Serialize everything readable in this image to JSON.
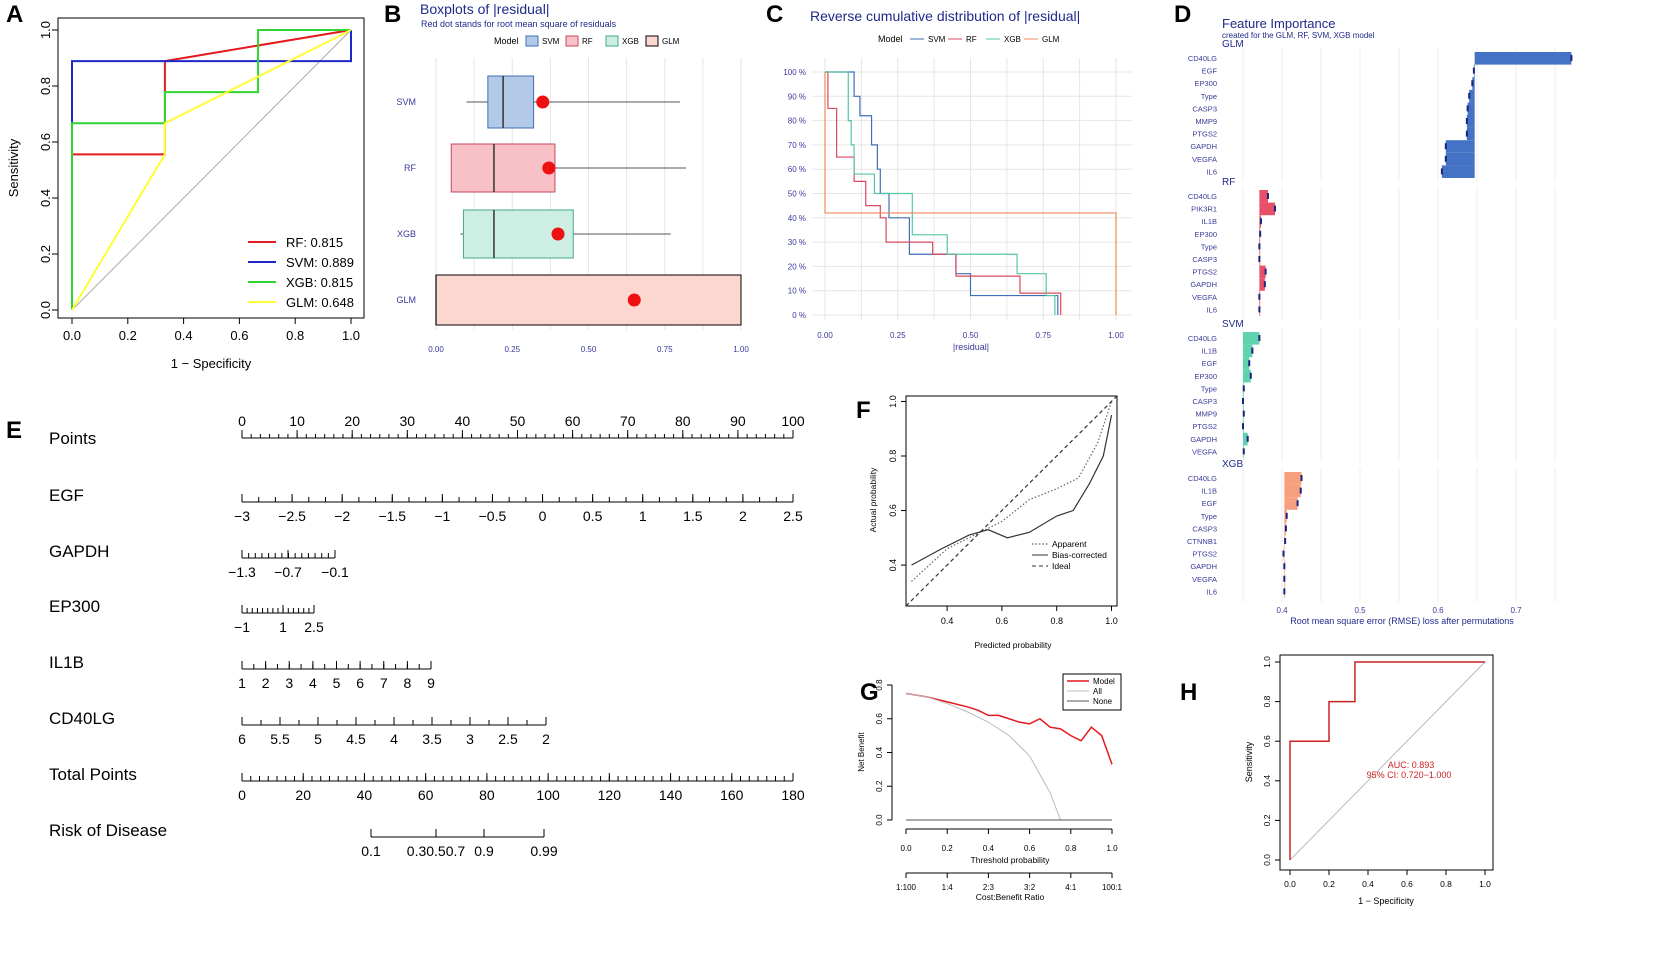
{
  "chart_data": [
    {
      "panel": "A",
      "type": "line",
      "title": "",
      "xlabel": "1 − Specificity",
      "ylabel": "Sensitivity",
      "xlim": [
        0,
        1
      ],
      "ylim": [
        0,
        1
      ],
      "ticks": [
        "0.0",
        "0.2",
        "0.4",
        "0.6",
        "0.8",
        "1.0"
      ],
      "legend_position": "bottom-right",
      "series": [
        {
          "name": "RF",
          "legend": "RF: 0.815",
          "color": "#e41a1c",
          "x": [
            0,
            0,
            0.333,
            0.333,
            0.333,
            0.333,
            1
          ],
          "y": [
            0,
            0.556,
            0.556,
            0.889,
            0.889,
            0.889,
            1
          ]
        },
        {
          "name": "SVM",
          "legend": "SVM: 0.889",
          "color": "#1f27c9",
          "x": [
            0,
            0,
            1,
            1
          ],
          "y": [
            0,
            0.889,
            0.889,
            1
          ]
        },
        {
          "name": "XGB",
          "legend": "XGB: 0.815",
          "color": "#2ed62e",
          "x": [
            0,
            0,
            0.333,
            0.333,
            0.667,
            0.667,
            1
          ],
          "y": [
            0,
            0.667,
            0.667,
            0.778,
            0.778,
            1,
            1
          ]
        },
        {
          "name": "GLM",
          "legend": "GLM: 0.648",
          "color": "#ffff33",
          "x": [
            0,
            0.333,
            0.333,
            1
          ],
          "y": [
            0,
            0.556,
            0.667,
            1
          ]
        }
      ]
    },
    {
      "panel": "B",
      "type": "box",
      "title": "Boxplots of |residual|",
      "subtitle": "Red dot stands for root mean square of residuals",
      "legend_title": "Model",
      "xlim": [
        0,
        1
      ],
      "ticks": [
        "0.00",
        "0.25",
        "0.50",
        "0.75",
        "1.00"
      ],
      "boxes": [
        {
          "name": "SVM",
          "fill": "#b3c9e8",
          "stroke": "#3f6fb5",
          "wlo": 0.1,
          "q1": 0.17,
          "med": 0.22,
          "q3": 0.32,
          "whi": 0.8,
          "rms": 0.35
        },
        {
          "name": "RF",
          "fill": "#f8c1c8",
          "stroke": "#c9485c",
          "wlo": 0.05,
          "q1": 0.05,
          "med": 0.19,
          "q3": 0.39,
          "whi": 0.82,
          "rms": 0.37
        },
        {
          "name": "XGB",
          "fill": "#cdeee3",
          "stroke": "#44a889",
          "wlo": 0.08,
          "q1": 0.09,
          "med": 0.19,
          "q3": 0.45,
          "whi": 0.77,
          "rms": 0.4
        },
        {
          "name": "GLM",
          "fill": "#fbd7cf",
          "stroke": "#000000",
          "wlo": 0.0,
          "q1": 0.0,
          "med": 0.0,
          "q3": 1.0,
          "whi": 1.0,
          "rms": 0.65
        }
      ]
    },
    {
      "panel": "C",
      "type": "line",
      "title": "Reverse cumulative distribution of |residual|",
      "legend_title": "Model",
      "xlabel": "|residual|",
      "xticks": [
        "0.00",
        "0.25",
        "0.50",
        "0.75",
        "1.00"
      ],
      "yticks": [
        "0 %",
        "10 %",
        "20 %",
        "30 %",
        "40 %",
        "50 %",
        "60 %",
        "70 %",
        "80 %",
        "90 %",
        "100 %"
      ],
      "series": [
        {
          "name": "SVM",
          "color": "#3f6fb5",
          "x": [
            0,
            0.1,
            0.12,
            0.16,
            0.18,
            0.19,
            0.22,
            0.29,
            0.45,
            0.5,
            0.8
          ],
          "y": [
            1,
            0.9,
            0.82,
            0.7,
            0.6,
            0.5,
            0.4,
            0.25,
            0.17,
            0.08,
            0
          ]
        },
        {
          "name": "RF",
          "color": "#d94a5f",
          "x": [
            0,
            0.01,
            0.04,
            0.1,
            0.14,
            0.19,
            0.21,
            0.37,
            0.45,
            0.67,
            0.81
          ],
          "y": [
            1,
            0.85,
            0.65,
            0.55,
            0.45,
            0.4,
            0.3,
            0.25,
            0.16,
            0.09,
            0
          ]
        },
        {
          "name": "XGB",
          "color": "#55c6a5",
          "x": [
            0,
            0.08,
            0.09,
            0.1,
            0.17,
            0.3,
            0.42,
            0.66,
            0.76,
            0.79
          ],
          "y": [
            1,
            0.8,
            0.7,
            0.58,
            0.5,
            0.33,
            0.25,
            0.17,
            0.08,
            0
          ]
        },
        {
          "name": "GLM",
          "color": "#f08a5a",
          "x": [
            0,
            0.0,
            1.0,
            1.0
          ],
          "y": [
            1,
            0.42,
            0.42,
            0
          ]
        }
      ]
    },
    {
      "panel": "D",
      "type": "bar",
      "title": "Feature Importance",
      "subtitle": "created for the GLM, RF, SVM, XGB model",
      "xlabel": "Root mean square error (RMSE) loss after permutations",
      "xticks": [
        "0.4",
        "0.5",
        "0.6",
        "0.7"
      ],
      "series": [
        {
          "name": "GLM",
          "color": "#4472c4",
          "base": 0.647,
          "categories": [
            "CD40LG",
            "EGF",
            "EP300",
            "Type",
            "CASP3",
            "MMP9",
            "PTGS2",
            "GAPDH",
            "VEGFA",
            "IL6"
          ],
          "values": [
            0.771,
            0.646,
            0.644,
            0.64,
            0.638,
            0.637,
            0.637,
            0.61,
            0.61,
            0.605
          ]
        },
        {
          "name": "RF",
          "color": "#e8506a",
          "base": 0.371,
          "categories": [
            "CD40LG",
            "PIK3R1",
            "IL1B",
            "EP300",
            "Type",
            "CASP3",
            "PTGS2",
            "GAPDH",
            "VEGFA",
            "IL6"
          ],
          "values": [
            0.382,
            0.391,
            0.373,
            0.372,
            0.371,
            0.371,
            0.379,
            0.378,
            0.371,
            0.371
          ]
        },
        {
          "name": "SVM",
          "color": "#5fd3ad",
          "base": 0.35,
          "categories": [
            "CD40LG",
            "IL1B",
            "EGF",
            "EP300",
            "Type",
            "CASP3",
            "MMP9",
            "PTGS2",
            "GAPDH",
            "VEGFA"
          ],
          "values": [
            0.371,
            0.362,
            0.358,
            0.36,
            0.351,
            0.35,
            0.351,
            0.35,
            0.356,
            0.351
          ]
        },
        {
          "name": "XGB",
          "color": "#f7a080",
          "base": 0.403,
          "categories": [
            "CD40LG",
            "IL1B",
            "EGF",
            "Type",
            "CASP3",
            "CTNNB1",
            "PTGS2",
            "GAPDH",
            "VEGFA",
            "IL6"
          ],
          "values": [
            0.425,
            0.424,
            0.42,
            0.406,
            0.405,
            0.404,
            0.402,
            0.403,
            0.403,
            0.403
          ]
        }
      ]
    },
    {
      "panel": "E",
      "type": "nomogram",
      "rows": [
        {
          "label": "Points",
          "ticks": [
            "0",
            "10",
            "20",
            "30",
            "40",
            "50",
            "60",
            "70",
            "80",
            "90",
            "100"
          ],
          "labels_above": true
        },
        {
          "label": "EGF",
          "ticks": [
            "−3",
            "−2.5",
            "−2",
            "−1.5",
            "−1",
            "−0.5",
            "0",
            "0.5",
            "1",
            "1.5",
            "2",
            "2.5"
          ]
        },
        {
          "label": "GAPDH",
          "ticks": [
            "−1.3",
            "−0.7",
            "−0.1"
          ]
        },
        {
          "label": "EP300",
          "ticks": [
            "−1",
            "1",
            "2.5"
          ]
        },
        {
          "label": "IL1B",
          "ticks": [
            "1",
            "2",
            "3",
            "4",
            "5",
            "6",
            "7",
            "8",
            "9"
          ]
        },
        {
          "label": "CD40LG",
          "ticks": [
            "6",
            "5.5",
            "5",
            "4.5",
            "4",
            "3.5",
            "3",
            "2.5",
            "2"
          ]
        },
        {
          "label": "Total Points",
          "ticks": [
            "0",
            "20",
            "40",
            "60",
            "80",
            "100",
            "120",
            "140",
            "160",
            "180"
          ]
        },
        {
          "label": "Risk of Disease",
          "ticks": [
            "0.1",
            "0.30.50.7",
            "0.9",
            "0.99"
          ]
        }
      ]
    },
    {
      "panel": "F",
      "type": "line",
      "xlabel": "Predicted probability",
      "ylabel": "Actual probability",
      "xticks": [
        "0.4",
        "0.6",
        "0.8",
        "1.0"
      ],
      "yticks": [
        "0.4",
        "0.6",
        "0.8",
        "1.0"
      ],
      "xlim": [
        0.25,
        1.02
      ],
      "ylim": [
        0.25,
        1.02
      ],
      "legend": [
        "Apparent",
        "Bias-corrected",
        "Ideal"
      ],
      "series": [
        {
          "name": "Apparent",
          "style": "dotted",
          "x": [
            0.27,
            0.4,
            0.52,
            0.6,
            0.7,
            0.8,
            0.88,
            0.95,
            1.0
          ],
          "y": [
            0.34,
            0.46,
            0.52,
            0.56,
            0.64,
            0.68,
            0.72,
            0.85,
            1.0
          ]
        },
        {
          "name": "Bias-corrected",
          "style": "solid",
          "x": [
            0.27,
            0.38,
            0.48,
            0.55,
            0.62,
            0.7,
            0.8,
            0.86,
            0.92,
            0.97,
            1.0
          ],
          "y": [
            0.4,
            0.46,
            0.51,
            0.53,
            0.5,
            0.52,
            0.58,
            0.6,
            0.7,
            0.8,
            0.95
          ]
        },
        {
          "name": "Ideal",
          "style": "dashed",
          "x": [
            0.25,
            1.02
          ],
          "y": [
            0.25,
            1.02
          ]
        }
      ]
    },
    {
      "panel": "G",
      "type": "line",
      "xlabel": "Threshold probability",
      "ylabel": "Net Benefit",
      "x2label": "Cost:Benefit Ratio",
      "xticks": [
        "0.0",
        "0.2",
        "0.4",
        "0.6",
        "0.8",
        "1.0"
      ],
      "x2ticks": [
        "1:100",
        "1:4",
        "2:3",
        "3:2",
        "4:1",
        "100:1"
      ],
      "yticks": [
        "0.0",
        "0.2",
        "0.4",
        "0.6",
        "0.8"
      ],
      "legend": [
        "Model",
        "All",
        "None"
      ],
      "series": [
        {
          "name": "Model",
          "color": "#e41a1c",
          "x": [
            0,
            0.1,
            0.2,
            0.3,
            0.35,
            0.4,
            0.45,
            0.5,
            0.55,
            0.6,
            0.65,
            0.7,
            0.75,
            0.8,
            0.85,
            0.9,
            0.95,
            1.0
          ],
          "y": [
            0.75,
            0.73,
            0.7,
            0.67,
            0.65,
            0.62,
            0.62,
            0.6,
            0.58,
            0.57,
            0.6,
            0.55,
            0.54,
            0.5,
            0.47,
            0.55,
            0.5,
            0.33
          ]
        },
        {
          "name": "All",
          "color": "#bbbbbb",
          "x": [
            0,
            0.1,
            0.2,
            0.3,
            0.4,
            0.5,
            0.6,
            0.7,
            0.75
          ],
          "y": [
            0.75,
            0.73,
            0.69,
            0.64,
            0.58,
            0.5,
            0.38,
            0.16,
            0
          ]
        },
        {
          "name": "None",
          "color": "#555555",
          "x": [
            0,
            1
          ],
          "y": [
            0,
            0
          ]
        }
      ]
    },
    {
      "panel": "H",
      "type": "line",
      "xlabel": "1 − Specificity",
      "ylabel": "Sensitivity",
      "ticks": [
        "0.0",
        "0.2",
        "0.4",
        "0.6",
        "0.8",
        "1.0"
      ],
      "annotation": [
        "AUC: 0.893",
        "95% CI: 0.720−1.000"
      ],
      "series": [
        {
          "name": "ROC",
          "color": "#cc2222",
          "x": [
            0,
            0,
            0.2,
            0.2,
            0.333,
            0.333,
            1
          ],
          "y": [
            0,
            0.6,
            0.6,
            0.8,
            0.8,
            1,
            1
          ]
        }
      ]
    }
  ]
}
